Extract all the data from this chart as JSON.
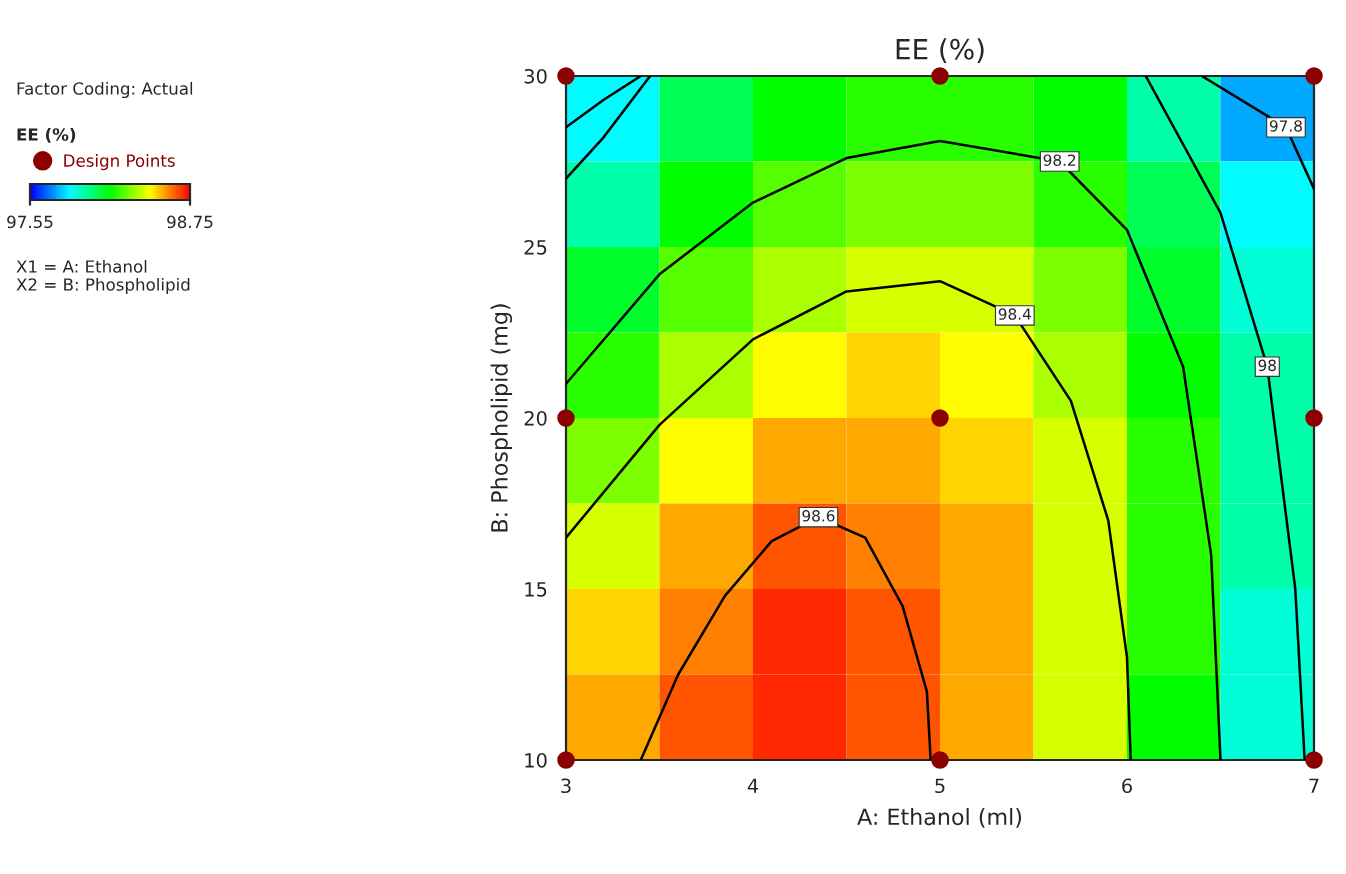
{
  "chart_data": {
    "type": "heatmap",
    "title": "EE (%)",
    "xlabel": "A: Ethanol (ml)",
    "ylabel": "B: Phospholipid (mg)",
    "clabel": "EE (%)",
    "annotations": [
      "Factor Coding: Actual",
      "X1 = A: Ethanol",
      "X2 = B: Phospholipid"
    ],
    "x": [
      3.25,
      3.75,
      4.25,
      4.75,
      5.25,
      5.75,
      6.25,
      6.75
    ],
    "y": [
      28.75,
      26.25,
      23.75,
      21.25,
      18.75,
      16.25,
      13.75,
      11.25
    ],
    "cells": [
      [
        97.85,
        98.05,
        98.15,
        98.2,
        98.2,
        98.15,
        97.95,
        97.75
      ],
      [
        97.95,
        98.15,
        98.25,
        98.3,
        98.3,
        98.2,
        98.05,
        97.85
      ],
      [
        98.1,
        98.25,
        98.35,
        98.4,
        98.4,
        98.3,
        98.1,
        97.9
      ],
      [
        98.2,
        98.35,
        98.45,
        98.5,
        98.45,
        98.35,
        98.15,
        97.95
      ],
      [
        98.3,
        98.45,
        98.55,
        98.55,
        98.5,
        98.4,
        98.2,
        97.95
      ],
      [
        98.4,
        98.55,
        98.65,
        98.6,
        98.55,
        98.4,
        98.2,
        97.95
      ],
      [
        98.5,
        98.6,
        98.7,
        98.65,
        98.55,
        98.4,
        98.2,
        97.9
      ],
      [
        98.55,
        98.65,
        98.7,
        98.65,
        98.55,
        98.4,
        98.15,
        97.9
      ]
    ],
    "colors": [
      "#0000ff",
      "#00ffff",
      "#00ff00",
      "#ffff00",
      "#ff0000"
    ],
    "clim": [
      97.55,
      98.75
    ],
    "cticks": [
      97.55,
      98.75
    ],
    "xlim": [
      3,
      7
    ],
    "ylim": [
      10,
      30
    ],
    "xticks": [
      3,
      4,
      5,
      6,
      7
    ],
    "yticks": [
      10,
      15,
      20,
      25,
      30
    ],
    "grid": false,
    "legend": "left",
    "series": [
      {
        "type": "line",
        "name": "98.6",
        "color": "#000000",
        "x": [
          3.4,
          3.6,
          3.85,
          4.1,
          4.35,
          4.6,
          4.8,
          4.93,
          4.95
        ],
        "values": [
          10,
          12.5,
          14.8,
          16.4,
          17.1,
          16.5,
          14.5,
          12,
          10
        ]
      },
      {
        "type": "line",
        "name": "98.4",
        "color": "#000000",
        "x": [
          3,
          3.5,
          4,
          4.5,
          5,
          5.4,
          5.7,
          5.9,
          6.0,
          6.02
        ],
        "values": [
          16.5,
          19.8,
          22.3,
          23.7,
          24,
          23,
          20.5,
          17,
          13,
          10
        ]
      },
      {
        "type": "line",
        "name": "98.2",
        "color": "#000000",
        "x": [
          3,
          3.5,
          4,
          4.5,
          5,
          5.64,
          6.0,
          6.3,
          6.45,
          6.5
        ],
        "values": [
          21,
          24.2,
          26.3,
          27.6,
          28.1,
          27.5,
          25.5,
          21.5,
          16,
          10
        ]
      },
      {
        "type": "line",
        "name": "98",
        "color": "#000000",
        "x": [
          3,
          3.2,
          3.45,
          5,
          6.1,
          6.5,
          6.75,
          6.9,
          6.95
        ],
        "values": [
          27,
          28.2,
          30,
          null,
          30,
          26,
          21.5,
          15,
          10
        ]
      },
      {
        "type": "line",
        "name": "97.8",
        "color": "#000000",
        "x": [
          3,
          3.2,
          3.4,
          5,
          6.4,
          6.85,
          7
        ],
        "values": [
          28.5,
          29.3,
          30,
          null,
          30,
          28.5,
          26.7
        ]
      },
      {
        "type": "scatter",
        "name": "Design Points",
        "color": "#8b0000",
        "marker": "circle",
        "x": [
          3,
          3,
          3,
          5,
          5,
          5,
          7,
          7,
          7
        ],
        "values": [
          10,
          20,
          30,
          10,
          20,
          30,
          10,
          20,
          30
        ]
      }
    ]
  }
}
